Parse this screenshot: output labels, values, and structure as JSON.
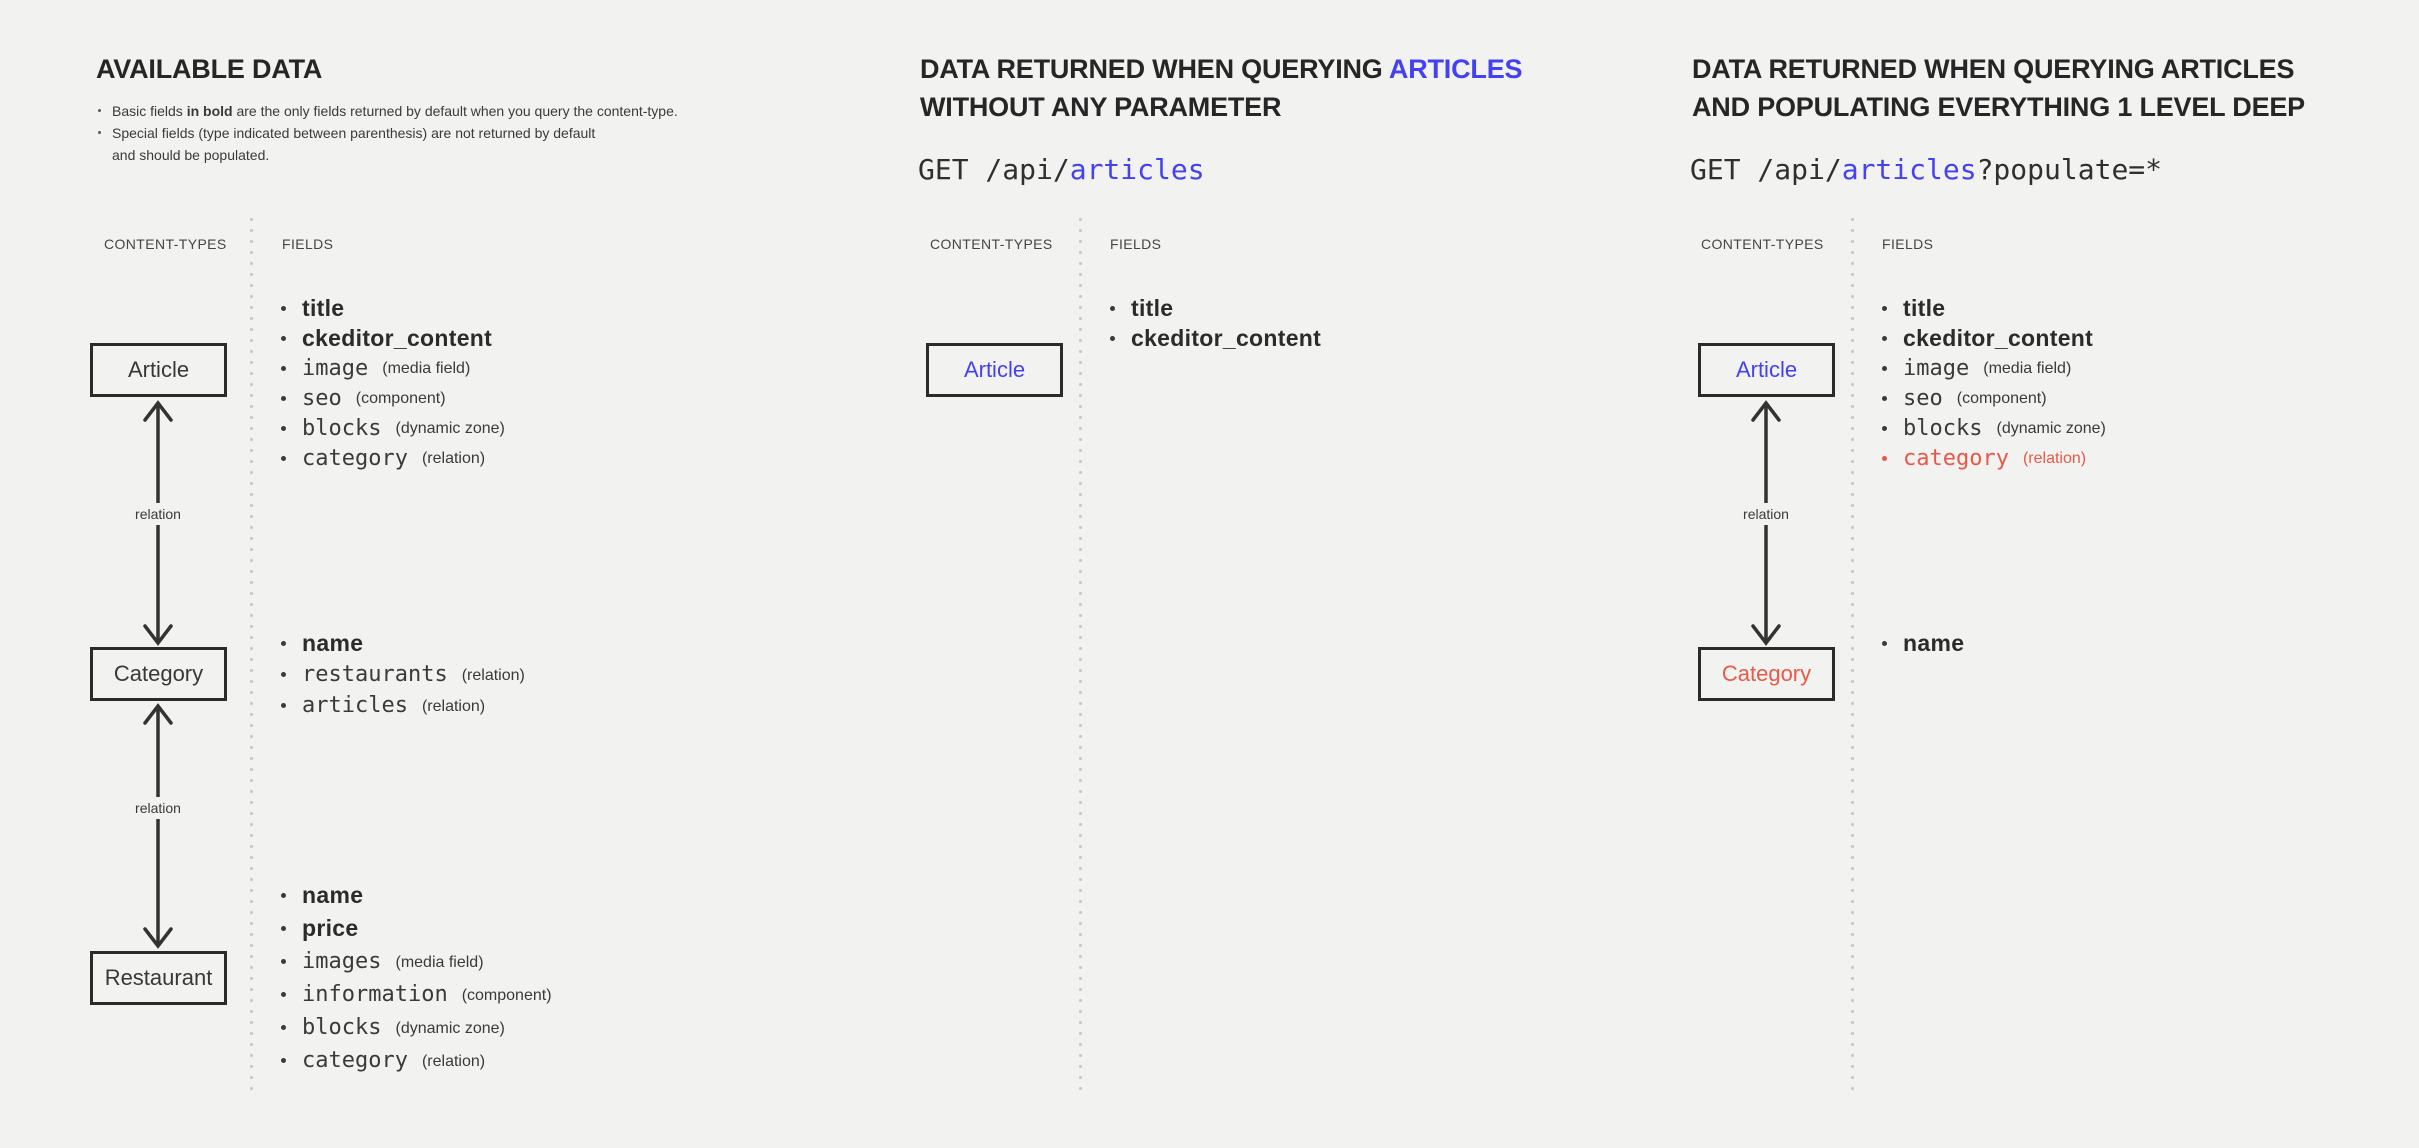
{
  "colors": {
    "background": "#f2f2f0",
    "text_dark": "#262626",
    "accent_blue": "#4440f4",
    "accent_red": "#e9584a",
    "divider_dots": "#c9c9c7",
    "box_border": "#2b2b2b"
  },
  "panel_available": {
    "title": "AVAILABLE DATA",
    "notes": [
      {
        "bullet": true,
        "parts": [
          {
            "t": "Basic fields "
          },
          {
            "t": "in bold",
            "cls": "b"
          },
          {
            "t": " are the only fields returned by default when you query the content-type."
          }
        ]
      },
      {
        "bullet": true,
        "parts": [
          {
            "t": "Special fields (type indicated between parenthesis) are not returned by default"
          }
        ]
      },
      {
        "bullet": false,
        "parts": [
          {
            "t": "and should be populated."
          }
        ]
      }
    ],
    "content_types_label": "CONTENT-TYPES",
    "fields_label": "FIELDS",
    "boxes": {
      "article": "Article",
      "category": "Category",
      "restaurant": "Restaurant"
    },
    "relation_labels": [
      "relation",
      "relation"
    ],
    "article_fields": [
      {
        "name": "title",
        "bold": true
      },
      {
        "name": "ckeditor_content",
        "bold": true
      },
      {
        "name": "image",
        "type": "(media field)"
      },
      {
        "name": "seo",
        "type": "(component)"
      },
      {
        "name": "blocks",
        "type": "(dynamic zone)"
      },
      {
        "name": "category",
        "type": "(relation)"
      }
    ],
    "category_fields": [
      {
        "name": "name",
        "bold": true
      },
      {
        "name": "restaurants",
        "type": "(relation)"
      },
      {
        "name": "articles",
        "type": "(relation)"
      }
    ],
    "restaurant_fields": [
      {
        "name": "name",
        "bold": true
      },
      {
        "name": "price",
        "bold": true
      },
      {
        "name": "images",
        "type": "(media field)"
      },
      {
        "name": "information",
        "type": "(component)"
      },
      {
        "name": "blocks",
        "type": "(dynamic zone)"
      },
      {
        "name": "category",
        "type": "(relation)"
      }
    ]
  },
  "panel_no_param": {
    "title_line1_parts": [
      {
        "t": "DATA RETURNED WHEN QUERYING "
      },
      {
        "t": "ARTICLES",
        "cls": "accent"
      }
    ],
    "title_line2": "WITHOUT ANY PARAMETER",
    "request_parts": [
      {
        "t": "GET /api/"
      },
      {
        "t": "articles",
        "cls": "accent"
      }
    ],
    "content_types_label": "CONTENT-TYPES",
    "fields_label": "FIELDS",
    "boxes": {
      "article": "Article"
    },
    "article_fields": [
      {
        "name": "title",
        "bold": true
      },
      {
        "name": "ckeditor_content",
        "bold": true
      }
    ]
  },
  "panel_populate": {
    "title_line1": "DATA RETURNED WHEN QUERYING ARTICLES",
    "title_line2": "AND POPULATING EVERYTHING 1 LEVEL DEEP",
    "request_parts": [
      {
        "t": "GET /api/"
      },
      {
        "t": "articles",
        "cls": "accent"
      },
      {
        "t": "?populate=*"
      }
    ],
    "content_types_label": "CONTENT-TYPES",
    "fields_label": "FIELDS",
    "boxes": {
      "article": "Article",
      "category": "Category"
    },
    "relation_labels": [
      "relation"
    ],
    "article_fields": [
      {
        "name": "title",
        "bold": true
      },
      {
        "name": "ckeditor_content",
        "bold": true
      },
      {
        "name": "image",
        "type": "(media field)"
      },
      {
        "name": "seo",
        "type": "(component)"
      },
      {
        "name": "blocks",
        "type": "(dynamic zone)"
      },
      {
        "name": "category",
        "type": "(relation)",
        "red": true
      }
    ],
    "category_fields": [
      {
        "name": "name",
        "bold": true
      }
    ]
  }
}
